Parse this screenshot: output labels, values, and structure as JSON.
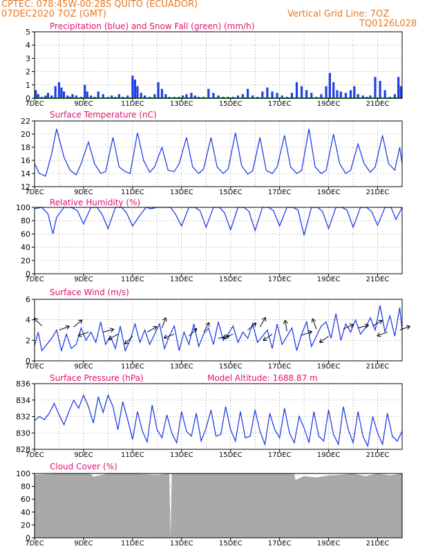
{
  "header": {
    "line1": "CPTEC:   078:45W-00:28S   QUITO (ECUADOR)",
    "line2": "07DEC2020 7OZ (GMT)",
    "grid_note": "Vertical Grid Line: 7OZ",
    "model_id": "TQ0126L028"
  },
  "colors": {
    "header": "#e8761f",
    "title": "#e0106e",
    "series": "#1f3fe6",
    "snow": "#20a020",
    "cloud": "#a9a9a9",
    "arrow": "#000000"
  },
  "x_ticks": [
    "7DEC",
    "9DEC",
    "11DEC",
    "13DEC",
    "15DEC",
    "17DEC",
    "19DEC",
    "21DEC"
  ],
  "x_tick_days": [
    7,
    9,
    11,
    13,
    15,
    17,
    19,
    21
  ],
  "xlim": [
    7,
    22
  ],
  "chart_data": [
    {
      "type": "bar",
      "title": "Precipitation (blue) and Snow Fall (green) (mm/h)",
      "ylim": [
        0,
        5
      ],
      "yticks": [
        "0",
        "1",
        "2",
        "3",
        "4",
        "5"
      ],
      "grid": true,
      "series": [
        {
          "name": "Precipitation",
          "x": [
            7.05,
            7.15,
            7.3,
            7.45,
            7.55,
            7.7,
            7.85,
            8.0,
            8.1,
            8.2,
            8.35,
            8.45,
            8.55,
            8.7,
            8.9,
            9.05,
            9.15,
            9.3,
            9.45,
            9.6,
            9.8,
            10.0,
            10.15,
            10.3,
            10.45,
            10.6,
            10.8,
            11.0,
            11.1,
            11.2,
            11.35,
            11.5,
            11.7,
            11.9,
            12.05,
            12.2,
            12.35,
            12.5,
            12.7,
            12.9,
            13.05,
            13.2,
            13.4,
            13.55,
            13.7,
            13.9,
            14.1,
            14.3,
            14.5,
            14.7,
            14.9,
            15.1,
            15.3,
            15.5,
            15.7,
            15.9,
            16.1,
            16.3,
            16.5,
            16.7,
            16.9,
            17.1,
            17.3,
            17.5,
            17.7,
            17.9,
            18.1,
            18.3,
            18.5,
            18.7,
            18.9,
            19.05,
            19.2,
            19.35,
            19.5,
            19.7,
            19.9,
            20.05,
            20.2,
            20.4,
            20.55,
            20.7,
            20.9,
            21.1,
            21.3,
            21.5,
            21.7,
            21.85,
            21.95
          ],
          "values": [
            0.6,
            0.3,
            0.1,
            0.2,
            0.4,
            0.2,
            0.9,
            1.2,
            0.8,
            0.5,
            0.2,
            0.1,
            0.3,
            0.2,
            0.1,
            1.0,
            0.5,
            0.2,
            0.1,
            0.5,
            0.3,
            0.1,
            0.2,
            0.1,
            0.3,
            0.1,
            0.2,
            1.7,
            1.4,
            0.9,
            0.4,
            0.2,
            0.1,
            0.3,
            1.2,
            0.7,
            0.3,
            0.1,
            0.1,
            0.1,
            0.2,
            0.3,
            0.4,
            0.2,
            0.1,
            0.1,
            0.7,
            0.4,
            0.2,
            0.1,
            0.1,
            0.1,
            0.2,
            0.3,
            0.7,
            0.2,
            0.1,
            0.5,
            0.8,
            0.5,
            0.4,
            0.2,
            0.1,
            0.4,
            1.2,
            0.9,
            0.6,
            0.4,
            0.1,
            0.3,
            0.9,
            1.9,
            1.2,
            0.6,
            0.5,
            0.4,
            0.6,
            0.9,
            0.3,
            0.2,
            0.1,
            0.2,
            1.6,
            1.3,
            0.6,
            0.1,
            0.3,
            1.6,
            0.9
          ]
        },
        {
          "name": "Snow Fall",
          "x": [
            7,
            22
          ],
          "values": [
            0,
            0
          ]
        }
      ]
    },
    {
      "type": "line",
      "title": "Surface Temperature (nC)",
      "ylim": [
        12,
        22
      ],
      "yticks": [
        "12",
        "14",
        "16",
        "18",
        "20",
        "22"
      ],
      "grid": true,
      "series": [
        {
          "name": "Temperature",
          "x": [
            7.0,
            7.2,
            7.45,
            7.7,
            7.9,
            8.2,
            8.45,
            8.7,
            8.9,
            9.2,
            9.45,
            9.7,
            9.9,
            10.2,
            10.45,
            10.7,
            10.9,
            11.2,
            11.45,
            11.7,
            11.9,
            12.2,
            12.45,
            12.7,
            12.9,
            13.2,
            13.45,
            13.7,
            13.9,
            14.2,
            14.45,
            14.7,
            14.9,
            15.2,
            15.45,
            15.7,
            15.9,
            16.2,
            16.45,
            16.7,
            16.9,
            17.2,
            17.45,
            17.7,
            17.9,
            18.2,
            18.45,
            18.7,
            18.9,
            19.2,
            19.45,
            19.7,
            19.9,
            20.2,
            20.45,
            20.7,
            20.9,
            21.2,
            21.45,
            21.7,
            21.9,
            22.0
          ],
          "values": [
            15.5,
            14.0,
            13.6,
            17.0,
            20.8,
            16.5,
            14.5,
            13.8,
            15.5,
            18.8,
            15.5,
            14.0,
            14.3,
            19.5,
            15.0,
            14.3,
            14.0,
            20.2,
            16.0,
            14.2,
            15.0,
            18.0,
            14.5,
            14.3,
            15.5,
            19.5,
            15.0,
            14.0,
            14.7,
            19.5,
            15.0,
            14.0,
            14.7,
            20.2,
            15.2,
            13.9,
            14.4,
            19.5,
            14.5,
            14.0,
            15.0,
            19.8,
            15.0,
            14.0,
            14.5,
            20.8,
            15.0,
            14.0,
            14.5,
            20.0,
            15.5,
            14.0,
            14.5,
            18.5,
            15.5,
            14.2,
            15.0,
            19.8,
            15.5,
            14.5,
            18.0,
            15.5
          ]
        }
      ]
    },
    {
      "type": "line",
      "title": "Relative Humidity (%)",
      "ylim": [
        0,
        100
      ],
      "yticks": [
        "0",
        "20",
        "40",
        "60",
        "80",
        "100"
      ],
      "grid": true,
      "series": [
        {
          "name": "Relative Humidity",
          "x": [
            7.0,
            7.3,
            7.55,
            7.75,
            7.9,
            8.2,
            8.5,
            8.75,
            9.0,
            9.3,
            9.55,
            9.75,
            10.0,
            10.3,
            10.55,
            10.75,
            11.0,
            11.3,
            11.55,
            11.75,
            12.0,
            12.3,
            12.55,
            12.75,
            13.0,
            13.3,
            13.55,
            13.75,
            14.0,
            14.3,
            14.55,
            14.75,
            15.0,
            15.3,
            15.55,
            15.75,
            16.0,
            16.3,
            16.55,
            16.75,
            17.0,
            17.3,
            17.55,
            17.75,
            18.0,
            18.3,
            18.55,
            18.75,
            19.0,
            19.3,
            19.55,
            19.75,
            20.0,
            20.3,
            20.55,
            20.75,
            21.0,
            21.3,
            21.55,
            21.75,
            22.0
          ],
          "values": [
            98,
            100,
            90,
            60,
            85,
            100,
            100,
            95,
            75,
            100,
            100,
            90,
            68,
            100,
            100,
            92,
            72,
            88,
            100,
            98,
            100,
            100,
            100,
            90,
            72,
            100,
            100,
            95,
            70,
            100,
            100,
            92,
            66,
            100,
            100,
            94,
            65,
            100,
            100,
            95,
            72,
            100,
            100,
            96,
            58,
            100,
            100,
            94,
            68,
            100,
            100,
            96,
            70,
            100,
            100,
            94,
            73,
            100,
            100,
            82,
            100
          ]
        }
      ]
    },
    {
      "type": "line",
      "title": "Surface Wind (m/s)",
      "ylim": [
        0,
        6
      ],
      "yticks": [
        "0",
        "2",
        "4",
        "6"
      ],
      "grid": true,
      "series": [
        {
          "name": "Wind Speed",
          "x": [
            7.0,
            7.15,
            7.3,
            7.5,
            7.7,
            7.9,
            8.1,
            8.3,
            8.5,
            8.7,
            8.9,
            9.1,
            9.3,
            9.5,
            9.7,
            9.9,
            10.1,
            10.3,
            10.5,
            10.7,
            10.9,
            11.1,
            11.3,
            11.5,
            11.7,
            11.9,
            12.1,
            12.3,
            12.5,
            12.7,
            12.9,
            13.1,
            13.3,
            13.5,
            13.7,
            13.9,
            14.1,
            14.3,
            14.5,
            14.7,
            14.9,
            15.1,
            15.3,
            15.5,
            15.7,
            15.9,
            16.1,
            16.3,
            16.5,
            16.7,
            16.9,
            17.1,
            17.3,
            17.5,
            17.7,
            17.9,
            18.1,
            18.3,
            18.5,
            18.7,
            18.9,
            19.1,
            19.3,
            19.5,
            19.7,
            19.9,
            20.1,
            20.3,
            20.5,
            20.7,
            20.9,
            21.1,
            21.3,
            21.5,
            21.7,
            21.9,
            22.0
          ],
          "values": [
            1.5,
            2.8,
            1.0,
            1.6,
            2.2,
            3.0,
            1.0,
            2.6,
            1.2,
            1.6,
            3.2,
            2.0,
            2.8,
            1.8,
            3.8,
            1.6,
            2.4,
            1.2,
            3.4,
            1.0,
            2.0,
            3.6,
            1.8,
            3.0,
            1.6,
            2.6,
            3.6,
            1.2,
            2.4,
            3.4,
            1.0,
            2.8,
            1.6,
            3.6,
            1.4,
            2.6,
            3.2,
            1.6,
            3.8,
            2.0,
            2.6,
            3.4,
            1.8,
            2.8,
            2.2,
            3.6,
            1.8,
            2.4,
            3.0,
            1.2,
            3.6,
            1.6,
            2.4,
            3.2,
            1.0,
            2.6,
            3.8,
            1.4,
            2.4,
            3.4,
            3.8,
            2.2,
            4.6,
            2.0,
            3.6,
            2.8,
            4.0,
            2.6,
            3.2,
            4.2,
            3.0,
            5.4,
            2.8,
            4.4,
            2.4,
            5.2,
            3.0
          ]
        }
      ],
      "arrows": [
        {
          "x": 7.3,
          "y": 3.4,
          "angle": 135
        },
        {
          "x": 8.0,
          "y": 3.0,
          "angle": 20
        },
        {
          "x": 8.6,
          "y": 3.3,
          "angle": 40
        },
        {
          "x": 9.2,
          "y": 2.8,
          "angle": 200
        },
        {
          "x": 9.8,
          "y": 2.8,
          "angle": 15
        },
        {
          "x": 10.4,
          "y": 2.6,
          "angle": 210
        },
        {
          "x": 11.0,
          "y": 2.4,
          "angle": 225
        },
        {
          "x": 11.6,
          "y": 2.8,
          "angle": 30
        },
        {
          "x": 12.2,
          "y": 3.2,
          "angle": 70
        },
        {
          "x": 12.7,
          "y": 2.6,
          "angle": 200
        },
        {
          "x": 13.3,
          "y": 2.4,
          "angle": 45
        },
        {
          "x": 13.9,
          "y": 2.8,
          "angle": 60
        },
        {
          "x": 14.5,
          "y": 2.2,
          "angle": 10
        },
        {
          "x": 15.1,
          "y": 2.6,
          "angle": 200
        },
        {
          "x": 15.7,
          "y": 3.0,
          "angle": 40
        },
        {
          "x": 16.2,
          "y": 3.3,
          "angle": 60
        },
        {
          "x": 16.7,
          "y": 2.6,
          "angle": 215
        },
        {
          "x": 17.3,
          "y": 2.9,
          "angle": 100
        },
        {
          "x": 17.9,
          "y": 2.5,
          "angle": 20
        },
        {
          "x": 18.5,
          "y": 3.1,
          "angle": 110
        },
        {
          "x": 19.0,
          "y": 2.4,
          "angle": 215
        },
        {
          "x": 19.6,
          "y": 3.1,
          "angle": 25
        },
        {
          "x": 20.2,
          "y": 3.2,
          "angle": 15
        },
        {
          "x": 20.8,
          "y": 3.4,
          "angle": 30
        },
        {
          "x": 21.4,
          "y": 2.8,
          "angle": 200
        },
        {
          "x": 21.9,
          "y": 3.0,
          "angle": 20
        }
      ]
    },
    {
      "type": "line",
      "title": "Surface Pressure (hPa)",
      "annotation": "Model Altitude: 1688.87  m",
      "ylim": [
        828,
        836
      ],
      "yticks": [
        "828",
        "830",
        "832",
        "834",
        "836"
      ],
      "grid": true,
      "series": [
        {
          "name": "Surface Pressure",
          "x": [
            7.0,
            7.2,
            7.4,
            7.6,
            7.8,
            8.0,
            8.2,
            8.4,
            8.6,
            8.8,
            9.0,
            9.2,
            9.4,
            9.6,
            9.8,
            10.0,
            10.2,
            10.4,
            10.6,
            10.8,
            11.0,
            11.2,
            11.4,
            11.6,
            11.8,
            12.0,
            12.2,
            12.4,
            12.6,
            12.8,
            13.0,
            13.2,
            13.4,
            13.6,
            13.8,
            14.0,
            14.2,
            14.4,
            14.6,
            14.8,
            15.0,
            15.2,
            15.4,
            15.6,
            15.8,
            16.0,
            16.2,
            16.4,
            16.6,
            16.8,
            17.0,
            17.2,
            17.4,
            17.6,
            17.8,
            18.0,
            18.2,
            18.4,
            18.6,
            18.8,
            19.0,
            19.2,
            19.4,
            19.6,
            19.8,
            20.0,
            20.2,
            20.4,
            20.6,
            20.8,
            21.0,
            21.2,
            21.4,
            21.6,
            21.8,
            22.0
          ],
          "values": [
            831.5,
            832.0,
            831.6,
            832.4,
            833.6,
            832.2,
            831.0,
            832.6,
            834.0,
            833.0,
            834.6,
            833.2,
            831.2,
            834.4,
            832.5,
            834.6,
            833.2,
            830.4,
            833.8,
            831.6,
            829.2,
            832.6,
            830.2,
            828.9,
            833.4,
            830.4,
            829.4,
            832.2,
            830.0,
            828.8,
            832.6,
            830.2,
            829.6,
            832.4,
            829.0,
            830.6,
            832.8,
            829.6,
            829.8,
            833.2,
            830.4,
            829.0,
            832.6,
            829.4,
            829.6,
            832.8,
            830.2,
            828.6,
            832.4,
            830.4,
            829.4,
            833.0,
            830.0,
            828.8,
            832.0,
            830.6,
            828.8,
            832.6,
            829.6,
            829.0,
            832.8,
            829.8,
            828.6,
            833.2,
            830.4,
            828.8,
            832.6,
            829.6,
            828.4,
            832.0,
            830.0,
            828.6,
            832.4,
            829.6,
            829.0,
            830.2
          ]
        }
      ]
    },
    {
      "type": "area",
      "title": "Cloud Cover (%)",
      "ylim": [
        0,
        100
      ],
      "yticks": [
        "0",
        "20",
        "40",
        "60",
        "80",
        "100"
      ],
      "grid": true,
      "series": [
        {
          "name": "Cloud Cover",
          "x": [
            7.0,
            8.0,
            9.0,
            9.3,
            9.4,
            10.0,
            11.0,
            12.0,
            12.5,
            12.55,
            12.6,
            13.0,
            14.0,
            15.0,
            16.0,
            17.0,
            17.6,
            17.65,
            18.0,
            18.5,
            19.0,
            19.5,
            20.0,
            20.5,
            21.0,
            21.5,
            22.0
          ],
          "values": [
            98,
            100,
            100,
            99,
            95,
            100,
            100,
            98,
            100,
            0,
            100,
            100,
            100,
            100,
            100,
            100,
            100,
            90,
            96,
            94,
            97,
            98,
            100,
            96,
            100,
            97,
            100
          ]
        }
      ]
    }
  ]
}
